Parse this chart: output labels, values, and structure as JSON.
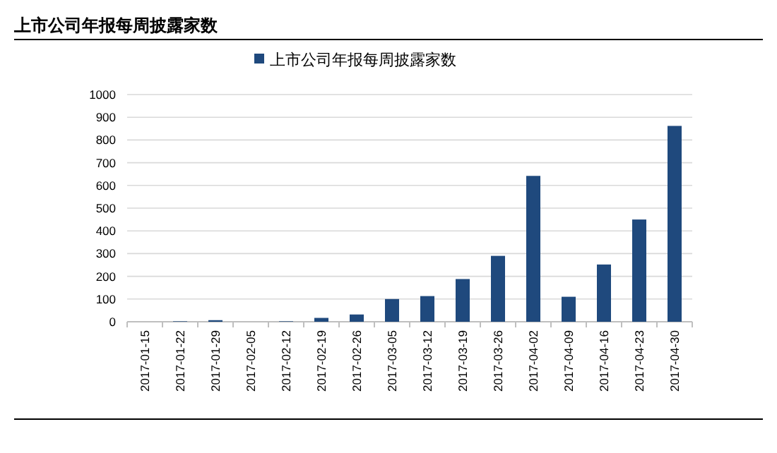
{
  "chart_data": {
    "type": "bar",
    "title": "上市公司年报每周披露家数",
    "categories": [
      "2017-01-15",
      "2017-01-22",
      "2017-01-29",
      "2017-02-05",
      "2017-02-12",
      "2017-02-19",
      "2017-02-26",
      "2017-03-05",
      "2017-03-12",
      "2017-03-19",
      "2017-03-26",
      "2017-04-02",
      "2017-04-09",
      "2017-04-16",
      "2017-04-23",
      "2017-04-30"
    ],
    "series": [
      {
        "name": "上市公司年报每周披露家数",
        "color": "#1f497d",
        "values": [
          0,
          2,
          7,
          0,
          2,
          17,
          32,
          100,
          113,
          188,
          290,
          642,
          110,
          252,
          450,
          862
        ]
      }
    ],
    "ylim": [
      0,
      1000
    ],
    "yticks": [
      0,
      100,
      200,
      300,
      400,
      500,
      600,
      700,
      800,
      900,
      1000
    ],
    "grid": "y",
    "legend": "top"
  }
}
